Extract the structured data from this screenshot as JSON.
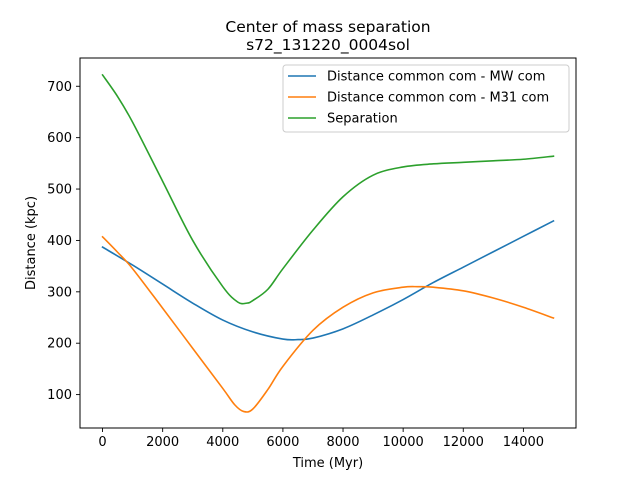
{
  "chart_data": {
    "type": "line",
    "title": "Center of mass separation",
    "subtitle": "s72_131220_0004sol",
    "xlabel": "Time (Myr)",
    "ylabel": "Distance (kpc)",
    "xlim": [
      -750,
      15750
    ],
    "ylim": [
      35,
      755
    ],
    "xticks": [
      0,
      2000,
      4000,
      6000,
      8000,
      10000,
      12000,
      14000
    ],
    "yticks": [
      100,
      200,
      300,
      400,
      500,
      600,
      700
    ],
    "grid": false,
    "legend_position": "top-right",
    "series": [
      {
        "name": "Distance common com - MW com",
        "color": "#1f77b4",
        "x": [
          0,
          1000,
          2000,
          3000,
          4000,
          5000,
          6000,
          6500,
          7000,
          8000,
          9000,
          10000,
          11000,
          12000,
          13000,
          14000,
          15000
        ],
        "y": [
          387,
          352,
          315,
          278,
          245,
          222,
          208,
          207,
          210,
          228,
          255,
          285,
          318,
          348,
          378,
          408,
          438
        ]
      },
      {
        "name": "Distance common com - M31 com",
        "color": "#ff7f0e",
        "x": [
          0,
          500,
          1000,
          2000,
          3000,
          4000,
          4400,
          4700,
          5000,
          5500,
          6000,
          7000,
          8000,
          9000,
          10000,
          10500,
          11000,
          12000,
          13000,
          14000,
          15000
        ],
        "y": [
          407,
          377,
          345,
          268,
          190,
          112,
          80,
          67,
          72,
          110,
          155,
          225,
          270,
          298,
          309,
          310,
          309,
          302,
          288,
          270,
          249
        ]
      },
      {
        "name": "Separation",
        "color": "#2ca02c",
        "x": [
          0,
          500,
          1000,
          2000,
          3000,
          4000,
          4500,
          4800,
          5000,
          5500,
          6000,
          7000,
          8000,
          9000,
          10000,
          11000,
          12000,
          13000,
          14000,
          15000
        ],
        "y": [
          722,
          680,
          630,
          515,
          400,
          310,
          280,
          278,
          283,
          305,
          345,
          420,
          485,
          527,
          543,
          549,
          552,
          555,
          558,
          564
        ]
      }
    ]
  }
}
